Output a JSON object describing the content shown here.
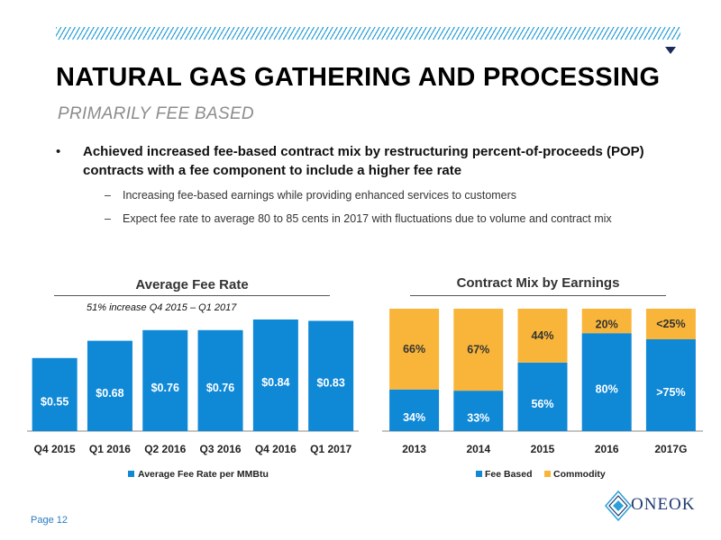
{
  "slide": {
    "title": "NATURAL GAS GATHERING AND PROCESSING",
    "subtitle": "PRIMARILY FEE BASED",
    "bullet": "Achieved increased fee-based contract mix by restructuring percent-of-proceeds (POP) contracts with a fee component to include a higher fee rate",
    "sub_bullets": [
      "Increasing fee-based earnings while providing enhanced services to customers",
      "Expect fee rate to average 80 to 85 cents in 2017 with fluctuations due to volume and contract mix"
    ],
    "page_number": "Page 12",
    "logo_text": "ONEOK"
  },
  "colors": {
    "blue": "#0f88d6",
    "gold": "#f9b53a",
    "hatch": "#2a9fd8"
  },
  "icons": [
    "hatch-band",
    "corner-triangle-icon",
    "oneok-logo-icon"
  ],
  "chart_data": [
    {
      "type": "bar",
      "title": "Average Fee Rate",
      "annotation": "51% increase Q4 2015 – Q1 2017",
      "categories": [
        "Q4 2015",
        "Q1 2016",
        "Q2 2016",
        "Q3 2016",
        "Q4 2016",
        "Q1 2017"
      ],
      "series": [
        {
          "name": "Average Fee Rate per MMBtu",
          "values": [
            0.55,
            0.68,
            0.76,
            0.76,
            0.84,
            0.83
          ],
          "labels": [
            "$0.55",
            "$0.68",
            "$0.76",
            "$0.76",
            "$0.84",
            "$0.83"
          ]
        }
      ],
      "ylim": [
        0,
        0.9
      ],
      "legend": "bottom",
      "grid": false
    },
    {
      "type": "bar",
      "stacked": true,
      "title": "Contract Mix by Earnings",
      "categories": [
        "2013",
        "2014",
        "2015",
        "2016",
        "2017G"
      ],
      "series": [
        {
          "name": "Fee Based",
          "values": [
            34,
            33,
            56,
            80,
            75
          ],
          "labels": [
            "34%",
            "33%",
            "56%",
            "80%",
            ">75%"
          ]
        },
        {
          "name": "Commodity",
          "values": [
            66,
            67,
            44,
            20,
            25
          ],
          "labels": [
            "66%",
            "67%",
            "44%",
            "20%",
            "<25%"
          ]
        }
      ],
      "ylim": [
        0,
        100
      ],
      "legend": "bottom",
      "grid": false
    }
  ]
}
